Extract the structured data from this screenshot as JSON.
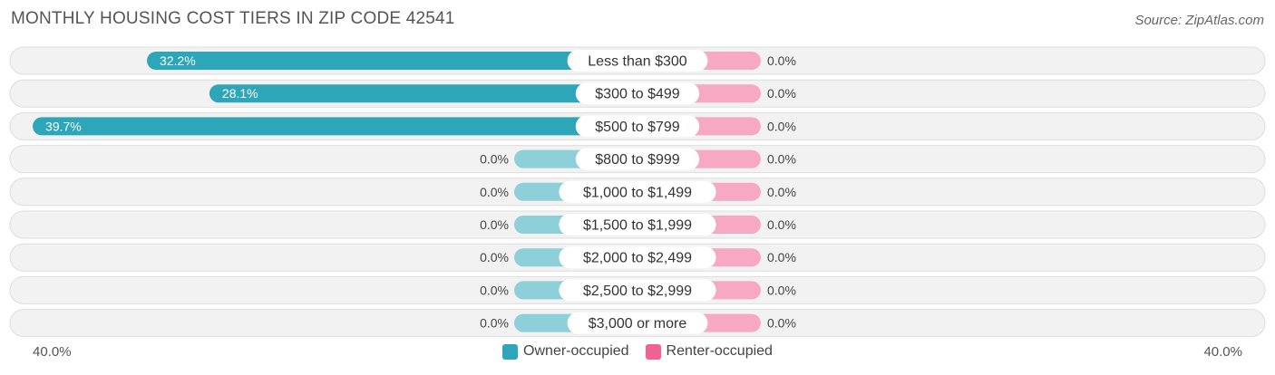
{
  "title": "MONTHLY HOUSING COST TIERS IN ZIP CODE 42541",
  "source": "Source: ZipAtlas.com",
  "colors": {
    "owner": "#2ca6b8",
    "owner_zero": "#8dd0d9",
    "renter": "#f7a8c2",
    "legend_renter": "#f06292",
    "track": "#f2f2f2",
    "track_border": "#dddddd"
  },
  "chart_data": {
    "type": "bar",
    "orientation": "horizontal-diverging",
    "categories": [
      "Less than $300",
      "$300 to $499",
      "$500 to $799",
      "$800 to $999",
      "$1,000 to $1,499",
      "$1,500 to $1,999",
      "$2,000 to $2,499",
      "$2,500 to $2,999",
      "$3,000 or more"
    ],
    "series": [
      {
        "name": "Owner-occupied",
        "values": [
          32.2,
          28.1,
          39.7,
          0.0,
          0.0,
          0.0,
          0.0,
          0.0,
          0.0
        ],
        "labels": [
          "32.2%",
          "28.1%",
          "39.7%",
          "0.0%",
          "0.0%",
          "0.0%",
          "0.0%",
          "0.0%",
          "0.0%"
        ]
      },
      {
        "name": "Renter-occupied",
        "values": [
          0.0,
          0.0,
          0.0,
          0.0,
          0.0,
          0.0,
          0.0,
          0.0,
          0.0
        ],
        "labels": [
          "0.0%",
          "0.0%",
          "0.0%",
          "0.0%",
          "0.0%",
          "0.0%",
          "0.0%",
          "0.0%",
          "0.0%"
        ]
      }
    ],
    "xlim": [
      -40,
      40
    ],
    "tick_labels": {
      "left": "40.0%",
      "right": "40.0%"
    },
    "legend_position": "bottom-center"
  }
}
